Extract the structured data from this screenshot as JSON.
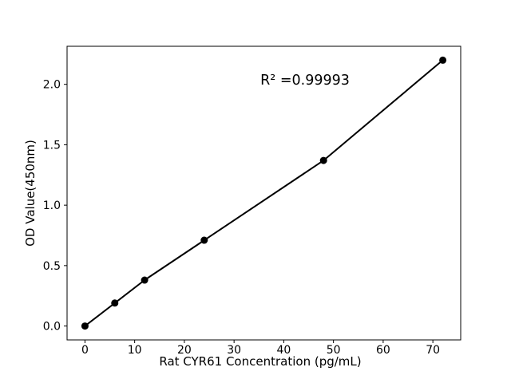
{
  "chart_data": {
    "type": "scatter",
    "title": "",
    "xlabel": "Rat CYR61 Concentration (pg/mL)",
    "ylabel": "OD Value(450nm)",
    "annotation": "R² =0.99993",
    "x": [
      0,
      6,
      12,
      24,
      48,
      72
    ],
    "y": [
      0.0,
      0.19,
      0.38,
      0.71,
      1.37,
      2.2
    ],
    "xticks": [
      0,
      10,
      20,
      30,
      40,
      50,
      60,
      70
    ],
    "yticks": [
      0.0,
      0.5,
      1.0,
      1.5,
      2.0
    ],
    "xlim": [
      -3.6,
      75.6
    ],
    "ylim": [
      -0.115,
      2.315
    ],
    "grid": false,
    "legend": "none",
    "marker": "filled-circle",
    "colors": {
      "marker": "#000000",
      "line": "#000000",
      "axis": "#000000",
      "text": "#000000",
      "background": "#ffffff"
    }
  }
}
